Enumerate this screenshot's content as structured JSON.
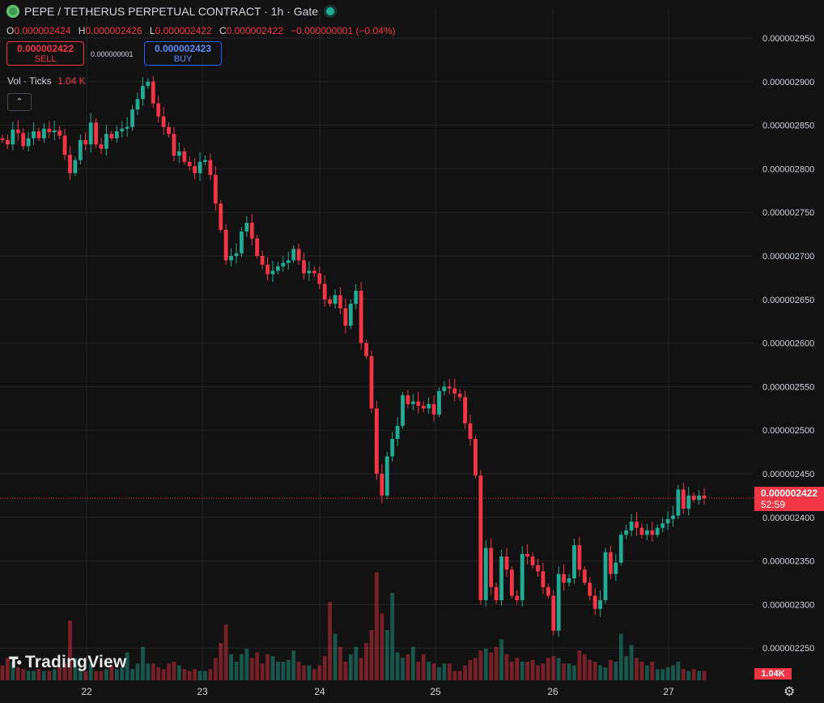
{
  "header": {
    "title": "PEPE / TETHERUS PERPETUAL CONTRACT · 1h · Gate"
  },
  "ohlc": {
    "o_label": "O",
    "o": "0.000002424",
    "h_label": "H",
    "h": "0.000002426",
    "l_label": "L",
    "l": "0.000002422",
    "c_label": "C",
    "c": "0.000002422",
    "change": "−0.000000001 (−0.04%)"
  },
  "trade": {
    "sell_price": "0.000002422",
    "sell_label": "SELL",
    "spread": "0.000000001",
    "buy_price": "0.000002423",
    "buy_label": "BUY"
  },
  "volume_legend": {
    "label": "Vol · Ticks",
    "value": "1.04 K"
  },
  "last_price": {
    "price": "0.000002422",
    "countdown": "52:59"
  },
  "volume_badge": "1.04K",
  "brand": "TradingView",
  "colors": {
    "up": "#22ab94",
    "down": "#f23645",
    "background": "#121212",
    "grid": "#222426"
  },
  "chart_data": {
    "type": "candlestick",
    "x_ticks": [
      "22",
      "23",
      "24",
      "25",
      "26",
      "27"
    ],
    "y_ticks": [
      2.25e-06,
      2.3e-06,
      2.35e-06,
      2.4e-06,
      2.45e-06,
      2.5e-06,
      2.55e-06,
      2.6e-06,
      2.65e-06,
      2.7e-06,
      2.75e-06,
      2.8e-06,
      2.85e-06,
      2.9e-06,
      2.95e-06
    ],
    "y_tick_labels": [
      "0.000002250",
      "0.000002300",
      "0.000002350",
      "0.000002400",
      "0.000002450",
      "0.000002500",
      "0.000002550",
      "0.000002600",
      "0.000002650",
      "0.000002700",
      "0.000002750",
      "0.000002800",
      "0.000002850",
      "0.000002900",
      "0.000002950"
    ],
    "ylim": [
      2.22e-06,
      2.98e-06
    ],
    "grid": true,
    "current_price": 2.422e-06,
    "series": [
      {
        "name": "Price",
        "values": [
          2.833,
          2.828,
          2.845,
          2.841,
          2.826,
          2.835,
          2.843,
          2.835,
          2.846,
          2.842,
          2.844,
          2.838,
          2.816,
          2.795,
          2.81,
          2.833,
          2.828,
          2.853,
          2.828,
          2.823,
          2.84,
          2.835,
          2.843,
          2.846,
          2.848,
          2.868,
          2.88,
          2.895,
          2.9,
          2.875,
          2.86,
          2.848,
          2.84,
          2.815,
          2.82,
          2.808,
          2.803,
          2.795,
          2.808,
          2.81,
          2.793,
          2.76,
          2.73,
          2.695,
          2.7,
          2.703,
          2.728,
          2.738,
          2.72,
          2.7,
          2.69,
          2.679,
          2.683,
          2.688,
          2.692,
          2.695,
          2.708,
          2.695,
          2.68,
          2.683,
          2.68,
          2.668,
          2.65,
          2.645,
          2.655,
          2.64,
          2.62,
          2.645,
          2.66,
          2.6,
          2.585,
          2.525,
          2.45,
          2.425,
          2.47,
          2.49,
          2.505,
          2.54,
          2.53,
          2.533,
          2.528,
          2.525,
          2.53,
          2.518,
          2.545,
          2.55,
          2.548,
          2.542,
          2.538,
          2.508,
          2.49,
          2.448,
          2.305,
          2.365,
          2.32,
          2.305,
          2.355,
          2.34,
          2.31,
          2.305,
          2.358,
          2.355,
          2.345,
          2.338,
          2.32,
          2.31,
          2.27,
          2.335,
          2.325,
          2.33,
          2.368,
          2.34,
          2.325,
          2.31,
          2.295,
          2.305,
          2.36,
          2.335,
          2.348,
          2.38,
          2.385,
          2.395,
          2.388,
          2.38,
          2.385,
          2.38,
          2.388,
          2.393,
          2.398,
          2.402,
          2.432,
          2.41,
          2.425,
          2.42,
          2.425,
          2.422
        ]
      },
      {
        "name": "Volume",
        "values": [
          0.08,
          0.12,
          0.1,
          0.07,
          0.06,
          0.05,
          0.05,
          0.06,
          0.05,
          0.05,
          0.06,
          0.07,
          0.09,
          0.32,
          0.12,
          0.06,
          0.05,
          0.09,
          0.05,
          0.05,
          0.06,
          0.08,
          0.06,
          0.07,
          0.15,
          0.06,
          0.09,
          0.18,
          0.09,
          0.09,
          0.07,
          0.06,
          0.09,
          0.1,
          0.08,
          0.06,
          0.05,
          0.06,
          0.05,
          0.05,
          0.06,
          0.12,
          0.2,
          0.3,
          0.14,
          0.1,
          0.14,
          0.17,
          0.12,
          0.15,
          0.09,
          0.14,
          0.13,
          0.1,
          0.1,
          0.11,
          0.16,
          0.1,
          0.08,
          0.08,
          0.06,
          0.08,
          0.13,
          0.42,
          0.25,
          0.18,
          0.1,
          0.14,
          0.18,
          0.12,
          0.2,
          0.27,
          0.58,
          0.36,
          0.27,
          0.47,
          0.15,
          0.12,
          0.14,
          0.18,
          0.1,
          0.14,
          0.1,
          0.09,
          0.07,
          0.09,
          0.09,
          0.05,
          0.05,
          0.08,
          0.11,
          0.12,
          0.16,
          0.17,
          0.15,
          0.18,
          0.22,
          0.14,
          0.1,
          0.12,
          0.1,
          0.1,
          0.11,
          0.08,
          0.09,
          0.12,
          0.13,
          0.12,
          0.09,
          0.09,
          0.08,
          0.16,
          0.14,
          0.11,
          0.1,
          0.08,
          0.07,
          0.11,
          0.1,
          0.25,
          0.13,
          0.19,
          0.12,
          0.1,
          0.08,
          0.1,
          0.06,
          0.06,
          0.07,
          0.08,
          0.1,
          0.06,
          0.05,
          0.06,
          0.05,
          0.05,
          0.05,
          0.1
        ]
      }
    ]
  }
}
